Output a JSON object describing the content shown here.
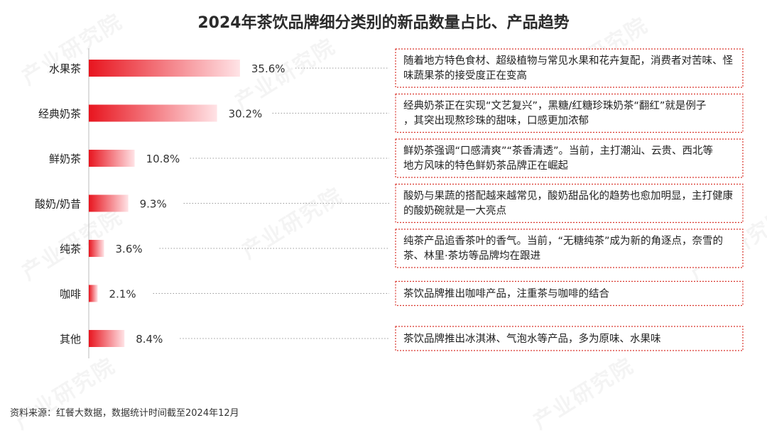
{
  "title": "2024年茶饮品牌细分类别的新品数量占比、产品趋势",
  "source": "资料来源：红餐大数据，数据统计时间截至2024年12月",
  "watermark": "产业研究院",
  "colors": {
    "bar_start": "#e8151f",
    "bar_end": "#ffe3e6",
    "box_border": "#d9352c",
    "axis": "#bbbbbb",
    "leader": "#999999"
  },
  "chart_data": {
    "type": "bar",
    "orientation": "horizontal",
    "title": "2024年茶饮品牌细分类别的新品数量占比、产品趋势",
    "categories": [
      "水果茶",
      "经典奶茶",
      "鲜奶茶",
      "酸奶/奶昔",
      "纯茶",
      "咖啡",
      "其他"
    ],
    "values": [
      35.6,
      30.2,
      10.8,
      9.3,
      3.6,
      2.1,
      8.4
    ],
    "value_labels": [
      "35.6%",
      "30.2%",
      "10.8%",
      "9.3%",
      "3.6%",
      "2.1%",
      "8.4%"
    ],
    "unit": "%",
    "xlim": [
      0,
      100
    ],
    "grid": false,
    "annotations": [
      "随着地方特色食材、超级植物与常见水果和花卉复配，消费者对苦味、怪味蔬果茶的接受度正在变高",
      "经典奶茶正在实现“文艺复兴”，黑糖/红糖珍珠奶茶“翻红”就是例子，其突出现熬珍珠的甜味，口感更加浓郁",
      "鲜奶茶强调“口感清爽”“茶香清透”。当前，主打潮汕、云贵、西北等地方风味的特色鲜奶茶品牌正在崛起",
      "酸奶与果蔬的搭配越来越常见，酸奶甜品化的趋势也愈加明显，主打健康的酸奶碗就是一大亮点",
      "纯茶产品追香茶叶的香气。当前，“无糖纯茶”成为新的角逐点，奈雪的茶、林里·茶坊等品牌均在跟进",
      "茶饮品牌推出咖啡产品，注重茶与咖啡的结合",
      "茶饮品牌推出冰淇淋、气泡水等产品，多为原味、水果味"
    ]
  }
}
